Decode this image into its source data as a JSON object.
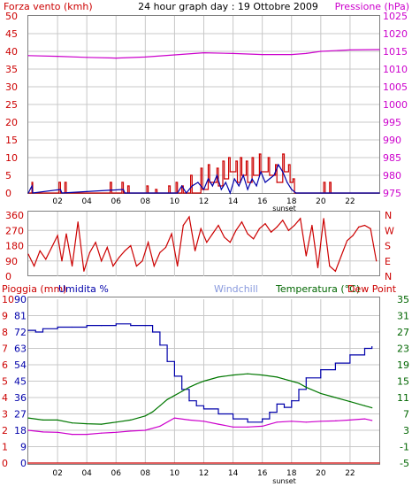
{
  "title": "24 hour graph day : 19 Ottobre 2009",
  "colors": {
    "axis": "#000000",
    "frame": "#808080",
    "grid": "#c8c8c8",
    "wind": "#cc0000",
    "gust": "#0000aa",
    "pressure": "#cc00cc",
    "direction": "#cc0000",
    "rain": "#cc0000",
    "humidity": "#0000aa",
    "temperature": "#007700",
    "dewpoint": "#cc00cc",
    "windchill_label": "#8899dd",
    "temperature_label": "#006600",
    "dewpoint_label": "#cc0000"
  },
  "chart_data": [
    {
      "type": "line",
      "panel": "wind-pressure",
      "left_label": "Forza vento (kmh)",
      "right_label": "Pressione (hPa)",
      "x_ticks": [
        "02",
        "04",
        "06",
        "08",
        "10",
        "12",
        "14",
        "16",
        "18",
        "20",
        "22"
      ],
      "x_range_hours": [
        0,
        24
      ],
      "sunset_label": "sunset",
      "sunset_hour": 17.5,
      "y_left_range": [
        0,
        50
      ],
      "y_left_ticks": [
        "0",
        "5",
        "10",
        "15",
        "20",
        "25",
        "30",
        "35",
        "40",
        "45",
        "50"
      ],
      "y_right_range": [
        975,
        1025
      ],
      "y_right_ticks": [
        "975",
        "980",
        "985",
        "990",
        "995",
        "1000",
        "1005",
        "1010",
        "1015",
        "1020",
        "1025"
      ],
      "series": [
        {
          "role": "wind",
          "hours": [
            0,
            0.25,
            0.3,
            2.1,
            2.2,
            2.5,
            2.6,
            5.6,
            5.7,
            6.4,
            6.5,
            6.8,
            6.9,
            8.1,
            8.2,
            8.7,
            8.8,
            9.6,
            9.7,
            10.1,
            10.2,
            10.5,
            10.6,
            11.1,
            11.2,
            11.8,
            11.9,
            12.3,
            12.4,
            12.9,
            13,
            13.3,
            13.4,
            13.7,
            13.8,
            14.2,
            14.3,
            14.5,
            14.6,
            14.9,
            15,
            15.3,
            15.4,
            15.8,
            15.9,
            16.4,
            16.5,
            16.9,
            17,
            17.4,
            17.5,
            17.8,
            17.9,
            18.1,
            18.2,
            20.2,
            20.3,
            20.6,
            20.7,
            24
          ],
          "values": [
            0,
            3,
            0,
            3,
            0,
            3,
            0,
            3,
            0,
            3,
            0,
            2,
            0,
            2,
            0,
            1,
            0,
            2,
            0,
            3,
            0,
            2,
            0,
            5,
            0,
            7,
            1,
            8,
            3,
            7,
            2,
            9,
            4,
            10,
            6,
            9,
            3,
            10,
            5,
            9,
            3,
            10,
            5,
            11,
            6,
            10,
            5,
            8,
            3,
            11,
            6,
            8,
            3,
            4,
            0,
            3,
            0,
            3,
            0,
            0
          ]
        },
        {
          "role": "gust",
          "hours": [
            0,
            0.25,
            0.3,
            2.2,
            2.3,
            6.5,
            6.6,
            10.2,
            10.5,
            10.8,
            11.2,
            11.6,
            12,
            12.3,
            12.6,
            12.9,
            13.2,
            13.5,
            13.8,
            14.1,
            14.4,
            14.7,
            15,
            15.3,
            15.6,
            15.9,
            16.2,
            16.5,
            16.8,
            17.1,
            17.4,
            17.7,
            18,
            18.3,
            24
          ],
          "values": [
            0,
            2,
            0,
            1,
            0,
            1,
            0,
            0,
            2,
            0,
            2,
            3,
            1,
            4,
            2,
            5,
            1,
            3,
            0,
            4,
            2,
            5,
            1,
            4,
            2,
            6,
            3,
            4,
            5,
            8,
            6,
            3,
            1,
            0,
            0
          ]
        },
        {
          "role": "pressure",
          "hours": [
            0,
            2,
            4,
            6,
            8,
            10,
            12,
            14,
            16,
            18,
            19,
            20,
            22,
            24
          ],
          "values": [
            1013.8,
            1013.6,
            1013.3,
            1013.1,
            1013.4,
            1014,
            1014.6,
            1014.4,
            1014.1,
            1014.1,
            1014.4,
            1015,
            1015.4,
            1015.5
          ]
        }
      ]
    },
    {
      "type": "line",
      "panel": "wind-direction",
      "y_left_range": [
        0,
        360
      ],
      "y_left_ticks": [
        "0",
        "90",
        "180",
        "270",
        "360"
      ],
      "y_right_ticks": [
        "N",
        "E",
        "S",
        "W",
        "N"
      ],
      "series": [
        {
          "role": "direction",
          "hours": [
            0,
            0.4,
            0.8,
            1.2,
            1.6,
            2,
            2.3,
            2.6,
            3,
            3.4,
            3.8,
            4.2,
            4.6,
            5,
            5.4,
            5.8,
            6.2,
            6.6,
            7,
            7.4,
            7.8,
            8.2,
            8.6,
            9,
            9.4,
            9.8,
            10.2,
            10.6,
            11,
            11.4,
            11.8,
            12.2,
            12.6,
            13,
            13.4,
            13.8,
            14.2,
            14.6,
            15,
            15.4,
            15.8,
            16.2,
            16.6,
            17,
            17.4,
            17.8,
            18.2,
            18.6,
            19,
            19.4,
            19.8,
            20.2,
            20.6,
            21,
            21.4,
            21.8,
            22.2,
            22.6,
            23,
            23.4,
            23.8
          ],
          "values": [
            130,
            60,
            150,
            100,
            170,
            240,
            90,
            250,
            60,
            320,
            30,
            140,
            200,
            90,
            170,
            60,
            110,
            150,
            180,
            60,
            90,
            200,
            60,
            140,
            170,
            250,
            60,
            300,
            350,
            150,
            280,
            200,
            250,
            300,
            230,
            200,
            270,
            320,
            250,
            220,
            280,
            310,
            260,
            290,
            330,
            270,
            300,
            340,
            120,
            300,
            50,
            340,
            60,
            30,
            120,
            210,
            240,
            290,
            300,
            280,
            90
          ]
        }
      ]
    },
    {
      "type": "line",
      "panel": "rain-humidity-temperature",
      "rain_label": "Pioggia (mm)",
      "humidity_label": "Umidita %",
      "windchill_label": "Windchill",
      "temperature_label": "Temperatura (°C)",
      "dewpoint_label": "Dew Point",
      "x_ticks": [
        "02",
        "04",
        "06",
        "08",
        "10",
        "12",
        "14",
        "16",
        "18",
        "20",
        "22"
      ],
      "sunset_label": "sunset",
      "sunset_hour": 17.5,
      "y_rain_ticks": [
        "0",
        "1",
        "2",
        "3",
        "4",
        "5",
        "6",
        "7",
        "8",
        "9",
        "10"
      ],
      "y_humidity_ticks": [
        "0",
        "10",
        "20",
        "30",
        "40",
        "50",
        "60",
        "70",
        "80",
        "90",
        "100"
      ],
      "y_humidity_labels": [
        "0",
        "9",
        "18",
        "27",
        "36",
        "45",
        "54",
        "63",
        "72",
        "81",
        "90"
      ],
      "humidity_display_range": [
        0,
        100
      ],
      "y_right_range": [
        -5,
        35
      ],
      "y_right_ticks": [
        "-5",
        "-1",
        "3",
        "7",
        "11",
        "15",
        "19",
        "23",
        "27",
        "31",
        "35"
      ],
      "series": [
        {
          "role": "rain",
          "hours": [
            0,
            24
          ],
          "values": [
            0,
            0
          ]
        },
        {
          "role": "humidity",
          "hours": [
            0,
            0.5,
            1,
            2,
            3,
            4,
            5,
            6,
            7,
            8,
            8.5,
            9,
            9.5,
            10,
            10.5,
            11,
            11.5,
            12,
            13,
            14,
            15,
            16,
            16.5,
            17,
            17.5,
            18,
            18.5,
            19,
            20,
            21,
            22,
            23,
            23.5
          ],
          "values": [
            81,
            80,
            82,
            83,
            83,
            84,
            84,
            85,
            84,
            84,
            80,
            72,
            62,
            53,
            45,
            38,
            35,
            33,
            30,
            27,
            25,
            27,
            31,
            36,
            34,
            38,
            45,
            52,
            57,
            61,
            66,
            70,
            71
          ]
        },
        {
          "role": "temperature",
          "hours": [
            0,
            1,
            2,
            3,
            4,
            5,
            6,
            7,
            8,
            8.5,
            9,
            9.5,
            10,
            10.5,
            11,
            11.5,
            12,
            13,
            14,
            15,
            16,
            17,
            17.5,
            18,
            18.5,
            19,
            20,
            21,
            22,
            23,
            23.5
          ],
          "values": [
            6,
            5.5,
            5.5,
            4.8,
            4.6,
            4.5,
            5,
            5.5,
            6.5,
            7.5,
            9,
            10.5,
            11.5,
            12.5,
            13.5,
            14.3,
            15,
            16,
            16.5,
            16.8,
            16.5,
            16,
            15.5,
            15,
            14.5,
            13.5,
            12,
            11,
            10,
            9,
            8.5
          ]
        },
        {
          "role": "dewpoint",
          "hours": [
            0,
            1,
            2,
            3,
            4,
            5,
            6,
            7,
            8,
            9,
            10,
            11,
            12,
            13,
            14,
            15,
            16,
            17,
            18,
            19,
            20,
            21,
            22,
            23,
            23.5
          ],
          "values": [
            3,
            2.6,
            2.5,
            2,
            2,
            2.3,
            2.5,
            2.8,
            3,
            4,
            6,
            5.5,
            5.2,
            4.5,
            3.8,
            3.8,
            4,
            5,
            5.2,
            5,
            5.2,
            5.3,
            5.5,
            5.8,
            5.4
          ]
        }
      ]
    }
  ]
}
